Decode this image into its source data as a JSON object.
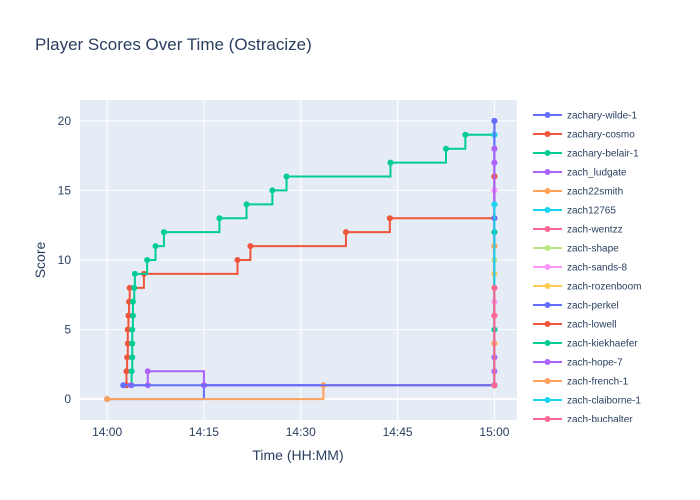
{
  "chart_data": {
    "type": "line",
    "line_shape": "step",
    "title": "Player Scores Over Time (Ostracize)",
    "xlabel": "Time (HH:MM)",
    "ylabel": "Score",
    "x_ticks": [
      "14:00",
      "14:15",
      "14:30",
      "14:45",
      "15:00"
    ],
    "x_tick_values": [
      0,
      15,
      30,
      45,
      60
    ],
    "xlim": [
      -4.2,
      63.5
    ],
    "y_ticks": [
      "0",
      "5",
      "10",
      "15",
      "20"
    ],
    "y_tick_values": [
      0,
      5,
      10,
      15,
      20
    ],
    "ylim": [
      -1.5,
      21.5
    ],
    "grid": true,
    "legend_position": "right",
    "series": [
      {
        "name": "zachary-wilde-1",
        "color": "#636efa",
        "points": [
          [
            0,
            0
          ],
          [
            15,
            1
          ],
          [
            60,
            20
          ]
        ]
      },
      {
        "name": "zachary-cosmo",
        "color": "#EF553B",
        "points": [
          [
            3.0,
            1
          ],
          [
            3.0,
            2
          ],
          [
            3.1,
            3
          ],
          [
            3.2,
            4
          ],
          [
            3.2,
            5
          ],
          [
            3.3,
            6
          ],
          [
            3.4,
            7
          ],
          [
            3.5,
            8
          ],
          [
            5.7,
            9
          ],
          [
            20.2,
            10
          ],
          [
            22.2,
            11
          ],
          [
            37.0,
            12
          ],
          [
            43.8,
            13
          ],
          [
            60,
            13
          ],
          [
            60,
            16
          ],
          [
            60,
            18
          ]
        ]
      },
      {
        "name": "zachary-belair-1",
        "color": "#00cc96",
        "points": [
          [
            3.8,
            1
          ],
          [
            3.8,
            2
          ],
          [
            3.9,
            3
          ],
          [
            3.9,
            4
          ],
          [
            3.9,
            5
          ],
          [
            4.0,
            6
          ],
          [
            4.0,
            7
          ],
          [
            4.2,
            8
          ],
          [
            4.3,
            9
          ],
          [
            6.2,
            10
          ],
          [
            7.5,
            11
          ],
          [
            8.8,
            12
          ],
          [
            17.4,
            13
          ],
          [
            21.6,
            14
          ],
          [
            25.6,
            15
          ],
          [
            27.8,
            16
          ],
          [
            43.9,
            17
          ],
          [
            52.5,
            18
          ],
          [
            55.5,
            19
          ],
          [
            60,
            19
          ]
        ]
      },
      {
        "name": "zach_ludgate",
        "color": "#ab63fa",
        "points": [
          [
            3.7,
            1
          ],
          [
            6.3,
            1
          ],
          [
            6.3,
            2
          ],
          [
            15,
            1
          ],
          [
            60,
            1
          ],
          [
            60,
            17
          ]
        ]
      },
      {
        "name": "zach22smith",
        "color": "#FFA15A",
        "points": [
          [
            0,
            0
          ],
          [
            33.5,
            1
          ],
          [
            60,
            1
          ],
          [
            60,
            11
          ]
        ]
      },
      {
        "name": "zach12765",
        "color": "#19d3f3",
        "points": [
          [
            60,
            1
          ],
          [
            60,
            5
          ],
          [
            60,
            14
          ],
          [
            60,
            19
          ]
        ]
      },
      {
        "name": "zach-wentzz",
        "color": "#FF6692",
        "points": [
          [
            60,
            1
          ],
          [
            60,
            6
          ],
          [
            60,
            15
          ]
        ]
      },
      {
        "name": "zach-shape",
        "color": "#B6E880",
        "points": [
          [
            60,
            1
          ],
          [
            60,
            10
          ],
          [
            60,
            12
          ]
        ]
      },
      {
        "name": "zach-sands-8",
        "color": "#FF97FF",
        "points": [
          [
            60,
            1
          ],
          [
            60,
            3
          ],
          [
            60,
            7
          ],
          [
            60,
            15
          ],
          [
            60,
            17
          ]
        ]
      },
      {
        "name": "zach-rozenboom",
        "color": "#FECB52",
        "points": [
          [
            60,
            1
          ],
          [
            60,
            4
          ],
          [
            60,
            9
          ],
          [
            60,
            12
          ]
        ]
      },
      {
        "name": "zach-perkel",
        "color": "#636efa",
        "points": [
          [
            2.5,
            1
          ],
          [
            60,
            1
          ],
          [
            60,
            13
          ],
          [
            60,
            20
          ]
        ]
      },
      {
        "name": "zach-lowell",
        "color": "#EF553B",
        "points": [
          [
            60,
            1
          ],
          [
            60,
            8
          ],
          [
            60,
            16
          ]
        ]
      },
      {
        "name": "zach-kiekhaefer",
        "color": "#00cc96",
        "points": [
          [
            60,
            1
          ],
          [
            60,
            5
          ],
          [
            60,
            12
          ]
        ]
      },
      {
        "name": "zach-hope-7",
        "color": "#ab63fa",
        "points": [
          [
            60,
            1
          ],
          [
            60,
            2
          ],
          [
            60,
            3
          ],
          [
            60,
            17
          ],
          [
            60,
            18
          ]
        ]
      },
      {
        "name": "zach-french-1",
        "color": "#FFA15A",
        "points": [
          [
            60,
            1
          ],
          [
            60,
            4
          ],
          [
            60,
            11
          ]
        ]
      },
      {
        "name": "zach-claiborne-1",
        "color": "#19d3f3",
        "points": [
          [
            60,
            1
          ],
          [
            60,
            14
          ]
        ]
      },
      {
        "name": "zach-buchalter",
        "color": "#FF6692",
        "points": [
          [
            60,
            1
          ],
          [
            60,
            6
          ],
          [
            60,
            8
          ]
        ]
      }
    ]
  }
}
